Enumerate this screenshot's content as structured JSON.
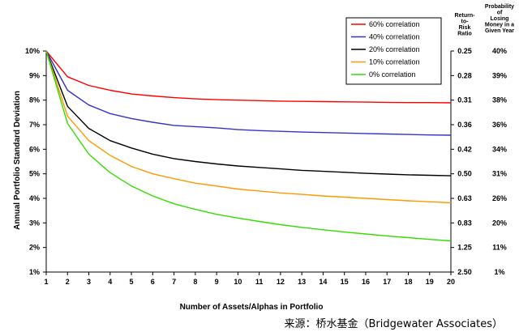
{
  "chart_data": {
    "type": "line",
    "x": [
      1,
      2,
      3,
      4,
      5,
      6,
      7,
      8,
      9,
      10,
      11,
      12,
      13,
      14,
      15,
      16,
      17,
      18,
      19,
      20
    ],
    "xlabel": "Number of Assets/Alphas in Portfolio",
    "ylabel": "Annual Portfolio Standard Deviation",
    "ylim": [
      1,
      10
    ],
    "y_ticks": [
      "10%",
      "9%",
      "8%",
      "7%",
      "6%",
      "5%",
      "4%",
      "3%",
      "2%",
      "1%"
    ],
    "x_ticks": [
      "1",
      "2",
      "3",
      "4",
      "5",
      "6",
      "7",
      "8",
      "9",
      "10",
      "11",
      "12",
      "13",
      "14",
      "15",
      "16",
      "17",
      "18",
      "19",
      "20"
    ],
    "right_axis_1": {
      "title_lines": [
        "Return-",
        "to-",
        "Risk",
        "Ratio"
      ],
      "ticks": [
        "0.25",
        "0.28",
        "0.31",
        "0.36",
        "0.42",
        "0.50",
        "0.63",
        "0.83",
        "1.25",
        "2.50"
      ]
    },
    "right_axis_2": {
      "title_lines": [
        "Probability",
        "of",
        "Losing",
        "Money in a",
        "Given Year"
      ],
      "ticks": [
        "40%",
        "39%",
        "38%",
        "36%",
        "34%",
        "31%",
        "26%",
        "20%",
        "11%",
        "1%"
      ]
    },
    "grid": false,
    "legend_position": "top-right",
    "series": [
      {
        "name": "60% correlation",
        "color": "#ff0000",
        "values": [
          10,
          8.95,
          8.6,
          8.4,
          8.25,
          8.17,
          8.1,
          8.05,
          8.02,
          8.0,
          7.98,
          7.96,
          7.95,
          7.94,
          7.93,
          7.92,
          7.91,
          7.9,
          7.9,
          7.89
        ]
      },
      {
        "name": "40% correlation",
        "color": "#3333cc",
        "values": [
          10,
          8.4,
          7.8,
          7.45,
          7.25,
          7.1,
          6.97,
          6.92,
          6.87,
          6.8,
          6.76,
          6.73,
          6.7,
          6.68,
          6.66,
          6.64,
          6.62,
          6.6,
          6.58,
          6.57
        ]
      },
      {
        "name": "20% correlation",
        "color": "#000000",
        "values": [
          10,
          7.75,
          6.85,
          6.35,
          6.05,
          5.8,
          5.62,
          5.5,
          5.4,
          5.32,
          5.26,
          5.2,
          5.14,
          5.1,
          5.06,
          5.02,
          4.99,
          4.96,
          4.94,
          4.92
        ]
      },
      {
        "name": "10% correlation",
        "color": "#ff9900",
        "values": [
          10,
          7.35,
          6.35,
          5.75,
          5.3,
          5.0,
          4.8,
          4.62,
          4.5,
          4.38,
          4.3,
          4.22,
          4.16,
          4.1,
          4.05,
          4.0,
          3.95,
          3.9,
          3.86,
          3.82
        ]
      },
      {
        "name": "0% correlation",
        "color": "#33dd00",
        "values": [
          10,
          7.05,
          5.8,
          5.05,
          4.5,
          4.1,
          3.78,
          3.55,
          3.35,
          3.2,
          3.06,
          2.93,
          2.82,
          2.72,
          2.63,
          2.55,
          2.47,
          2.4,
          2.33,
          2.27
        ]
      }
    ]
  },
  "source_note": "来源：桥水基金（Bridgewater Associates）"
}
